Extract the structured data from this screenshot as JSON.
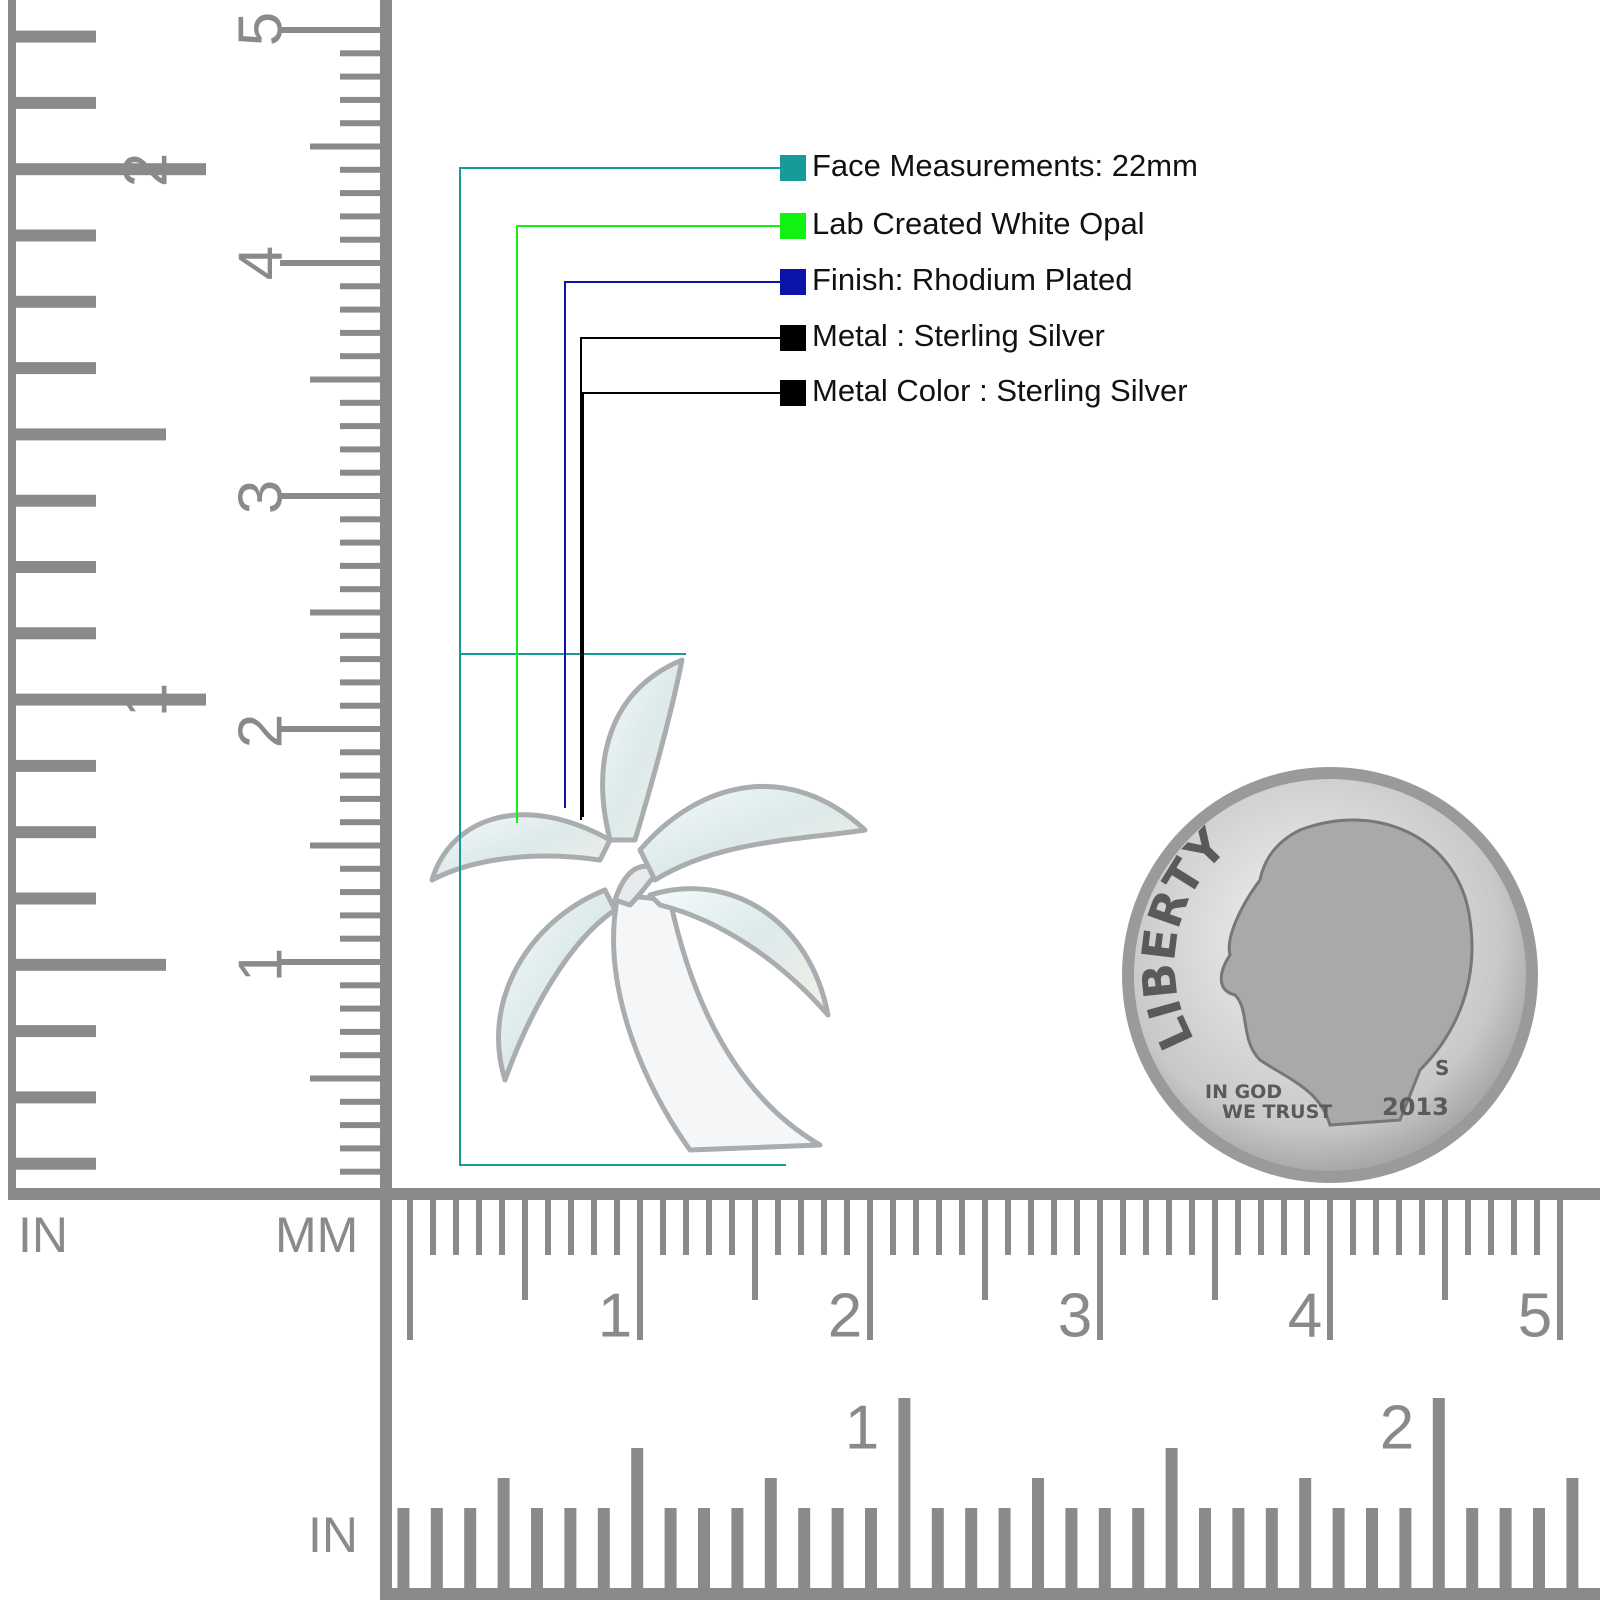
{
  "specs": [
    {
      "label": "Face Measurements: 22mm",
      "color": "#169a9a"
    },
    {
      "label": "Lab Created White Opal",
      "color": "#12f212"
    },
    {
      "label": "Finish: Rhodium Plated",
      "color": "#0a14a8"
    },
    {
      "label": "Metal : Sterling Silver",
      "color": "#000000"
    },
    {
      "label": "Metal Color : Sterling Silver",
      "color": "#000000"
    }
  ],
  "rulers": {
    "left_units": "IN",
    "middle_units": "MM",
    "bottom_units": "IN",
    "vertical_mm": [
      "1",
      "2",
      "3",
      "4",
      "5"
    ],
    "vertical_in": [
      "1",
      "2"
    ],
    "horizontal_mm": [
      "1",
      "2",
      "3",
      "4",
      "5"
    ],
    "horizontal_in": [
      "1",
      "2"
    ]
  },
  "coin": {
    "motto": "LIBERTY",
    "trust_1": "IN GOD",
    "trust_2": "WE TRUST",
    "year": "2013",
    "mint": "S"
  }
}
